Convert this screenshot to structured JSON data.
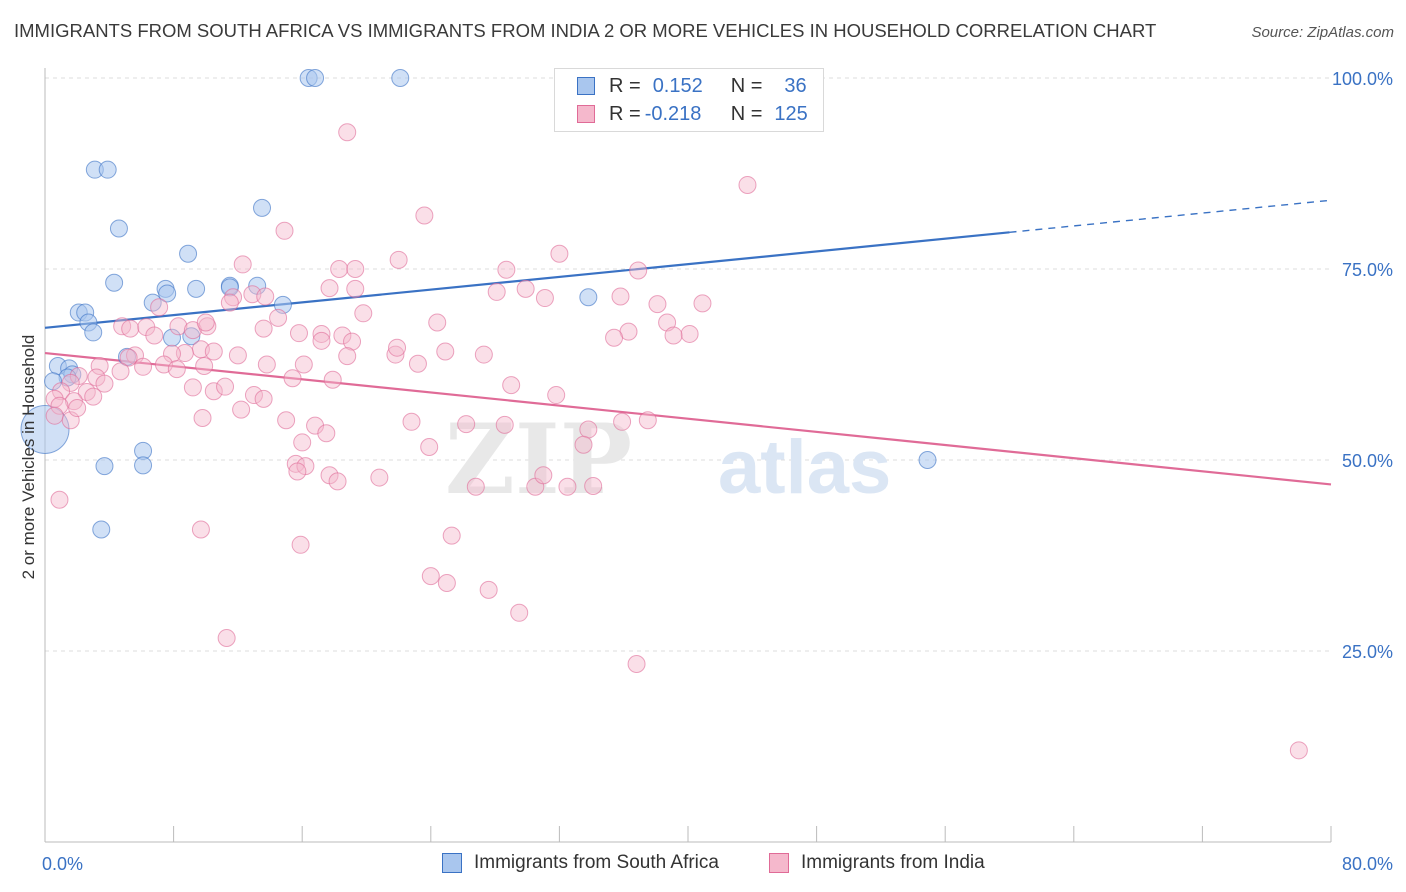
{
  "title": "IMMIGRANTS FROM SOUTH AFRICA VS IMMIGRANTS FROM INDIA 2 OR MORE VEHICLES IN HOUSEHOLD CORRELATION CHART",
  "source": "Source: ZipAtlas.com",
  "watermark": {
    "zip": "ZIP",
    "atlas": "atlas"
  },
  "colors": {
    "blue": "#3a72c4",
    "blue_fill": "#a9c6ee",
    "pink": "#e06b97",
    "pink_fill": "#f5b8cc",
    "grid": "#dddddd"
  },
  "legend": {
    "row1": {
      "r_label": "R =",
      "r_value": "0.152",
      "n_label": "N =",
      "n_value": "36"
    },
    "row2": {
      "r_label": "R =",
      "r_value": "-0.218",
      "n_label": "N =",
      "n_value": "125"
    }
  },
  "bottom_legend": {
    "series1": "Immigrants from South Africa",
    "series2": "Immigrants from India"
  },
  "chart_data": {
    "type": "scatter",
    "xlabel": "",
    "ylabel": "2 or more Vehicles in Household",
    "xlim": [
      0,
      80
    ],
    "ylim": [
      0,
      105
    ],
    "x_tick_labels": [
      {
        "value": 0,
        "label": "0.0%"
      },
      {
        "value": 80,
        "label": "80.0%"
      }
    ],
    "y_tick_labels": [
      {
        "value": 25,
        "label": "25.0%"
      },
      {
        "value": 50,
        "label": "50.0%"
      },
      {
        "value": 75,
        "label": "75.0%"
      },
      {
        "value": 100,
        "label": "100.0%"
      }
    ],
    "series": [
      {
        "name": "Immigrants from South Africa",
        "color": "#3a72c4",
        "R": 0.152,
        "N": 36,
        "trend": {
          "x0": 0,
          "y0": 67.3,
          "x1": 60,
          "y1": 79.8,
          "dashed_to_x": 80,
          "dashed_to_y": 84.0
        },
        "points": [
          [
            16.4,
            100
          ],
          [
            16.8,
            100
          ],
          [
            22.1,
            100
          ],
          [
            3.1,
            88.0
          ],
          [
            3.9,
            88.0
          ],
          [
            4.6,
            80.3
          ],
          [
            13.5,
            83.0
          ],
          [
            8.9,
            77.0
          ],
          [
            4.3,
            73.2
          ],
          [
            7.5,
            72.4
          ],
          [
            9.4,
            72.4
          ],
          [
            7.6,
            71.8
          ],
          [
            11.5,
            72.8
          ],
          [
            11.5,
            72.6
          ],
          [
            13.2,
            72.8
          ],
          [
            14.8,
            70.3
          ],
          [
            6.7,
            70.6
          ],
          [
            2.1,
            69.3
          ],
          [
            2.5,
            69.3
          ],
          [
            2.7,
            68.0
          ],
          [
            3.0,
            66.7
          ],
          [
            7.9,
            66.0
          ],
          [
            9.1,
            66.2
          ],
          [
            5.1,
            63.5
          ],
          [
            0.8,
            62.3
          ],
          [
            1.5,
            62.0
          ],
          [
            1.7,
            61.2
          ],
          [
            1.4,
            60.8
          ],
          [
            0.5,
            60.3
          ],
          [
            0.0,
            54.0
          ],
          [
            6.1,
            51.2
          ],
          [
            3.7,
            49.2
          ],
          [
            6.1,
            49.3
          ],
          [
            3.5,
            40.9
          ],
          [
            33.8,
            71.3
          ],
          [
            54.9,
            50.0
          ]
        ]
      },
      {
        "name": "Immigrants from India",
        "color": "#e06b97",
        "R": -0.218,
        "N": 125,
        "trend": {
          "x0": 0,
          "y0": 64.0,
          "x1": 80,
          "y1": 46.8
        },
        "points": [
          [
            18.8,
            92.9
          ],
          [
            43.7,
            86.0
          ],
          [
            23.6,
            82.0
          ],
          [
            14.9,
            80.0
          ],
          [
            12.3,
            75.6
          ],
          [
            18.3,
            75.0
          ],
          [
            19.3,
            75.0
          ],
          [
            22.0,
            76.2
          ],
          [
            28.7,
            74.9
          ],
          [
            32.0,
            77.0
          ],
          [
            36.9,
            74.8
          ],
          [
            17.7,
            72.5
          ],
          [
            19.3,
            72.4
          ],
          [
            29.9,
            72.4
          ],
          [
            35.8,
            71.4
          ],
          [
            11.7,
            71.3
          ],
          [
            12.9,
            71.7
          ],
          [
            13.7,
            71.4
          ],
          [
            11.5,
            70.6
          ],
          [
            7.1,
            70.0
          ],
          [
            40.9,
            70.5
          ],
          [
            19.8,
            69.2
          ],
          [
            14.5,
            68.6
          ],
          [
            24.4,
            68.0
          ],
          [
            4.8,
            67.5
          ],
          [
            5.3,
            67.2
          ],
          [
            6.3,
            67.4
          ],
          [
            8.3,
            67.5
          ],
          [
            9.2,
            67.0
          ],
          [
            10.1,
            67.5
          ],
          [
            10.0,
            68.0
          ],
          [
            13.6,
            67.2
          ],
          [
            15.8,
            66.6
          ],
          [
            17.2,
            66.5
          ],
          [
            18.5,
            66.3
          ],
          [
            36.3,
            66.8
          ],
          [
            6.8,
            66.3
          ],
          [
            17.2,
            65.6
          ],
          [
            19.1,
            65.5
          ],
          [
            9.7,
            64.5
          ],
          [
            8.7,
            64.0
          ],
          [
            5.6,
            63.7
          ],
          [
            5.2,
            63.4
          ],
          [
            7.9,
            63.9
          ],
          [
            10.5,
            64.2
          ],
          [
            12.0,
            63.7
          ],
          [
            18.8,
            63.6
          ],
          [
            21.8,
            63.8
          ],
          [
            24.9,
            64.2
          ],
          [
            3.4,
            62.3
          ],
          [
            6.1,
            62.2
          ],
          [
            7.4,
            62.5
          ],
          [
            9.9,
            62.3
          ],
          [
            13.8,
            62.5
          ],
          [
            16.1,
            62.5
          ],
          [
            8.2,
            61.9
          ],
          [
            4.7,
            61.6
          ],
          [
            2.1,
            61.0
          ],
          [
            3.2,
            60.8
          ],
          [
            3.7,
            60.0
          ],
          [
            1.6,
            60.1
          ],
          [
            1.0,
            59.0
          ],
          [
            9.2,
            59.5
          ],
          [
            10.5,
            59.0
          ],
          [
            11.2,
            59.6
          ],
          [
            15.4,
            60.7
          ],
          [
            17.9,
            60.5
          ],
          [
            29.0,
            59.8
          ],
          [
            2.6,
            58.9
          ],
          [
            3.0,
            58.3
          ],
          [
            0.6,
            58.0
          ],
          [
            1.8,
            57.7
          ],
          [
            0.9,
            57.1
          ],
          [
            0.6,
            55.8
          ],
          [
            1.6,
            55.2
          ],
          [
            2.0,
            56.8
          ],
          [
            13.0,
            58.5
          ],
          [
            13.6,
            58.0
          ],
          [
            12.2,
            56.6
          ],
          [
            15.0,
            55.2
          ],
          [
            16.8,
            54.5
          ],
          [
            17.5,
            53.5
          ],
          [
            22.8,
            55.0
          ],
          [
            26.2,
            54.7
          ],
          [
            28.6,
            54.6
          ],
          [
            33.8,
            54.0
          ],
          [
            9.8,
            55.5
          ],
          [
            16.0,
            52.3
          ],
          [
            23.9,
            51.7
          ],
          [
            33.5,
            52.0
          ],
          [
            15.6,
            49.5
          ],
          [
            16.2,
            49.2
          ],
          [
            15.7,
            48.5
          ],
          [
            17.7,
            48.0
          ],
          [
            18.2,
            47.2
          ],
          [
            20.8,
            47.7
          ],
          [
            30.5,
            46.5
          ],
          [
            32.5,
            46.5
          ],
          [
            34.1,
            46.6
          ],
          [
            0.9,
            44.8
          ],
          [
            9.7,
            40.9
          ],
          [
            15.9,
            38.9
          ],
          [
            25.3,
            40.1
          ],
          [
            24.0,
            34.8
          ],
          [
            25.0,
            33.9
          ],
          [
            27.6,
            33.0
          ],
          [
            29.5,
            30.0
          ],
          [
            11.3,
            26.7
          ],
          [
            36.8,
            23.3
          ],
          [
            78.0,
            12.0
          ],
          [
            38.7,
            68.0
          ],
          [
            40.1,
            66.5
          ],
          [
            38.1,
            70.4
          ],
          [
            28.1,
            72.0
          ],
          [
            31.1,
            71.2
          ],
          [
            35.4,
            66.0
          ],
          [
            21.9,
            64.7
          ],
          [
            23.2,
            62.6
          ],
          [
            27.3,
            63.8
          ],
          [
            31.8,
            58.5
          ],
          [
            39.1,
            66.3
          ],
          [
            37.5,
            55.2
          ],
          [
            31.0,
            48.0
          ],
          [
            26.8,
            46.5
          ],
          [
            35.9,
            55.0
          ]
        ]
      }
    ]
  }
}
